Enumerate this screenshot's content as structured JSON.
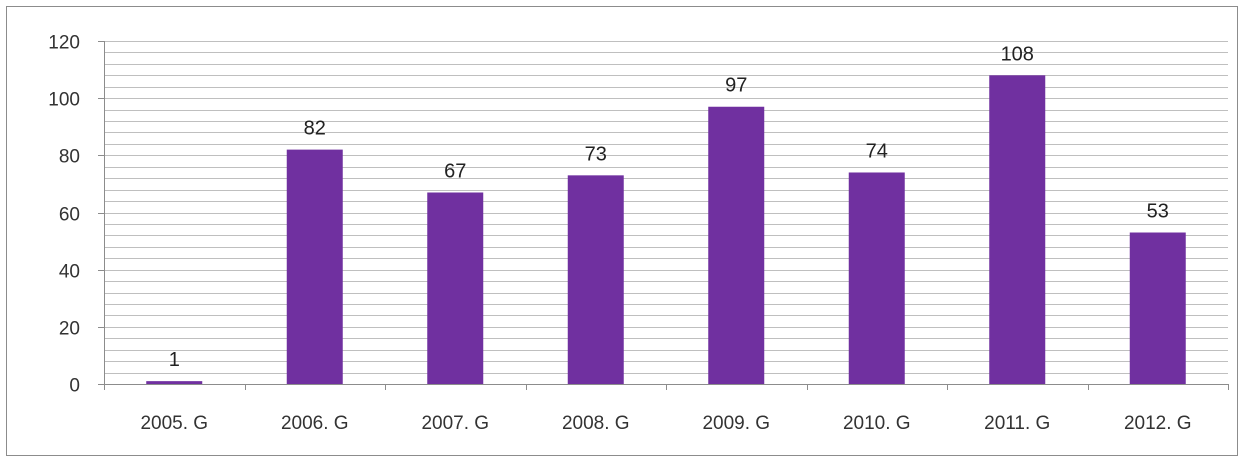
{
  "chart_data": {
    "type": "bar",
    "title": "",
    "xlabel": "",
    "ylabel": "",
    "categories": [
      "2005. G",
      "2006. G",
      "2007. G",
      "2008. G",
      "2009. G",
      "2010. G",
      "2011. G",
      "2012. G"
    ],
    "values": [
      1,
      82,
      67,
      73,
      97,
      74,
      108,
      53
    ],
    "ylim": [
      0,
      120
    ],
    "yticks": [
      0,
      20,
      40,
      60,
      80,
      100,
      120
    ],
    "minor_grid_step": 4,
    "grid": true,
    "legend": "none",
    "data_labels": true,
    "colors": {
      "bar": "#7030a0",
      "grid": "#bfbfbf",
      "axis": "#8c8c8c",
      "frame": "#8c8c8c"
    }
  }
}
